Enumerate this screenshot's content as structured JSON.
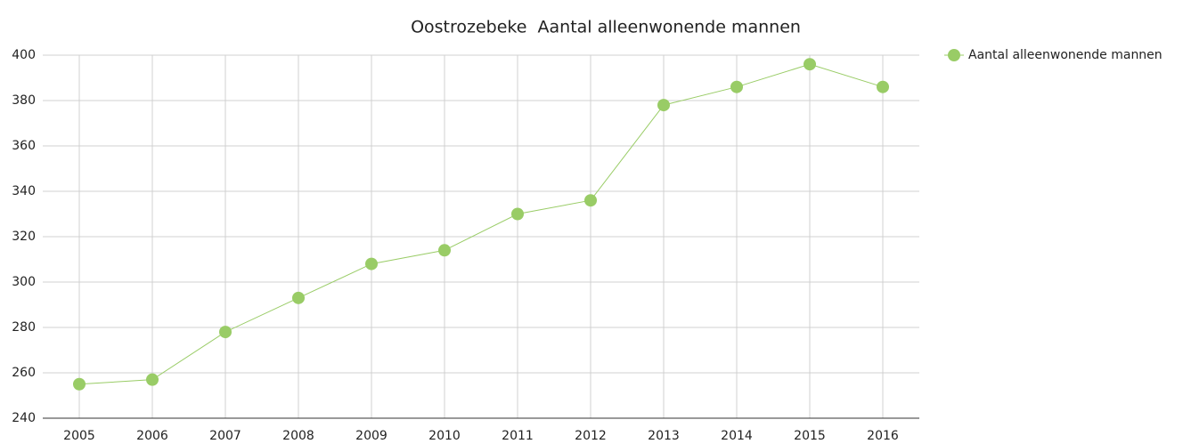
{
  "chart_data": {
    "type": "line",
    "title": "Oostrozebeke  Aantal alleenwonende mannen",
    "categories": [
      "2005",
      "2006",
      "2007",
      "2008",
      "2009",
      "2010",
      "2011",
      "2012",
      "2013",
      "2014",
      "2015",
      "2016"
    ],
    "series": [
      {
        "name": "Aantal alleenwonende mannen",
        "color": "#99cc66",
        "values": [
          255,
          257,
          278,
          293,
          308,
          314,
          330,
          336,
          378,
          386,
          396,
          386
        ]
      }
    ],
    "ylim": [
      240,
      400
    ],
    "yticks": [
      240,
      260,
      280,
      300,
      320,
      340,
      360,
      380,
      400
    ],
    "grid": true,
    "legend": "top-right"
  }
}
